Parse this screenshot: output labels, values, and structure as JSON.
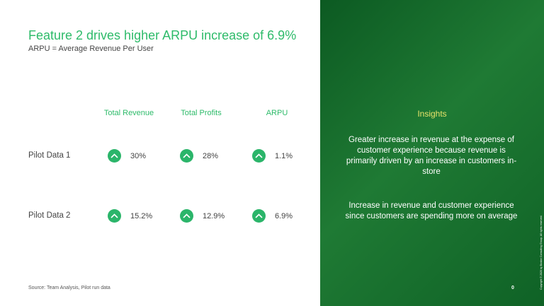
{
  "slide": {
    "title": "Feature 2 drives higher ARPU increase of 6.9%",
    "subtitle": "ARPU = Average Revenue Per User"
  },
  "table": {
    "columns": [
      "Total Revenue",
      "Total Profits",
      "ARPU"
    ],
    "rows": [
      {
        "label": "Pilot Data 1",
        "values": [
          "30%",
          "28%",
          "1.1%"
        ]
      },
      {
        "label": "Pilot Data 2",
        "values": [
          "15.2%",
          "12.9%",
          "6.9%"
        ]
      }
    ],
    "trend_icon": "chevron-up-icon"
  },
  "insights": {
    "heading": "Insights",
    "items": [
      "Greater increase in revenue at the expense of customer experience because revenue is primarily driven by an increase in customers in-store",
      "Increase in revenue and customer experience since customers are spending more on average"
    ]
  },
  "footer": {
    "source": "Source: Team Analysis, Pilot run data",
    "page_number": "0",
    "copyright": "Copyright © 2020 by Boston Consulting Group. All rights reserved."
  },
  "colors": {
    "title_green": "#2ebb6a",
    "icon_green": "#2bb56a",
    "panel_green": "#1f7a34",
    "insights_yellow": "#e8e36a"
  }
}
